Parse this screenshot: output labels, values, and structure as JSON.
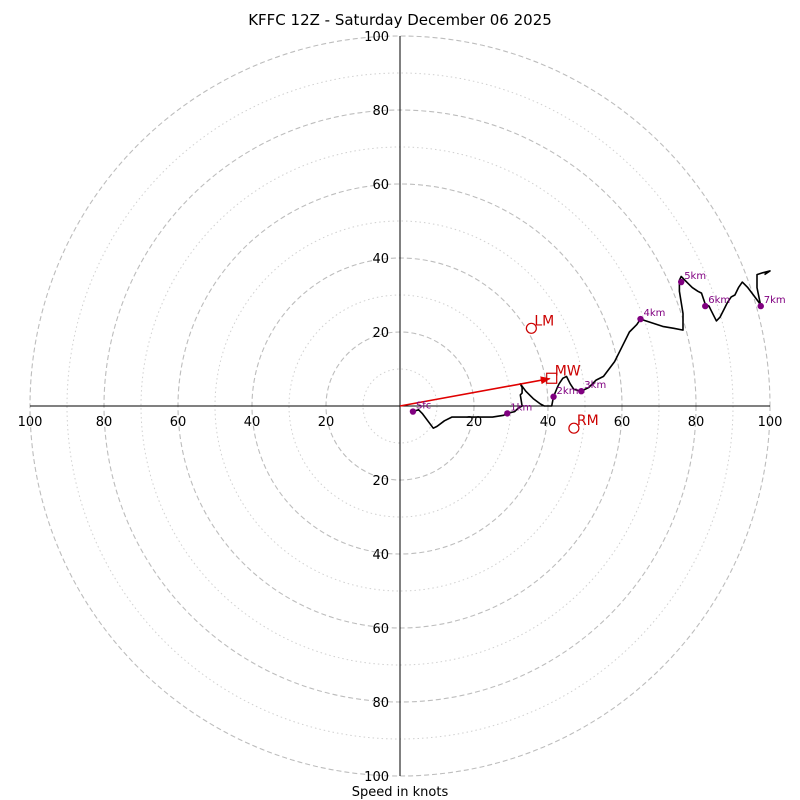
{
  "chart_data": {
    "type": "hodograph",
    "title": "KFFC 12Z - Saturday December 06 2025",
    "xlabel": "Speed in knots",
    "ring_interval": 20,
    "minor_ring_interval": 10,
    "max_speed": 100,
    "tick_labels": {
      "left": [
        "100",
        "80",
        "60",
        "40",
        "20"
      ],
      "right": [
        "20",
        "40",
        "60",
        "80",
        "100"
      ],
      "up": [
        "20",
        "40",
        "60",
        "80",
        "100"
      ],
      "down": [
        "20",
        "40",
        "60",
        "80",
        "100"
      ]
    },
    "trace_uv": [
      [
        3.5,
        -1.5
      ],
      [
        5,
        -1
      ],
      [
        6,
        -2
      ],
      [
        9,
        -6
      ],
      [
        10,
        -5.5
      ],
      [
        12,
        -4
      ],
      [
        14,
        -3
      ],
      [
        18,
        -3
      ],
      [
        22,
        -3
      ],
      [
        25,
        -3
      ],
      [
        28,
        -2.5
      ],
      [
        29,
        -2
      ],
      [
        31,
        -1.5
      ],
      [
        32,
        -0.5
      ],
      [
        33,
        0
      ],
      [
        32.5,
        3
      ],
      [
        33,
        3.5
      ],
      [
        33,
        5
      ],
      [
        32.5,
        6
      ],
      [
        34,
        4
      ],
      [
        36,
        2
      ],
      [
        38,
        0.5
      ],
      [
        39,
        0
      ],
      [
        40,
        0
      ],
      [
        41,
        0
      ],
      [
        41.5,
        2.5
      ],
      [
        42.5,
        5
      ],
      [
        43,
        6
      ],
      [
        44,
        7.5
      ],
      [
        45,
        8
      ],
      [
        46,
        6
      ],
      [
        47,
        4.5
      ],
      [
        49,
        4
      ],
      [
        51,
        5
      ],
      [
        53,
        7
      ],
      [
        55,
        8
      ],
      [
        58,
        12
      ],
      [
        60,
        16
      ],
      [
        62,
        20
      ],
      [
        64,
        22
      ],
      [
        65,
        23.5
      ],
      [
        68,
        22.5
      ],
      [
        71,
        21.5
      ],
      [
        74,
        21
      ],
      [
        76.5,
        20.5
      ],
      [
        76.5,
        22
      ],
      [
        76.5,
        25
      ],
      [
        76,
        28
      ],
      [
        75.5,
        31
      ],
      [
        75.5,
        34
      ],
      [
        76,
        35
      ],
      [
        78,
        33
      ],
      [
        79,
        32
      ],
      [
        80.5,
        31
      ],
      [
        81.5,
        30.5
      ],
      [
        82,
        29
      ],
      [
        82.5,
        27.5
      ],
      [
        83.5,
        27
      ],
      [
        84,
        26
      ],
      [
        85,
        24
      ],
      [
        85.5,
        23
      ],
      [
        86.5,
        24
      ],
      [
        87.5,
        26
      ],
      [
        88.5,
        28
      ],
      [
        89.5,
        29.5
      ],
      [
        90.5,
        30
      ],
      [
        91.5,
        32
      ],
      [
        92.5,
        33.5
      ],
      [
        94,
        32
      ],
      [
        95.5,
        30
      ],
      [
        97,
        28
      ],
      [
        97.5,
        27
      ],
      [
        96.5,
        32
      ],
      [
        96.5,
        35.5
      ],
      [
        98,
        36
      ],
      [
        100,
        36.5
      ],
      [
        98.5,
        35.5
      ]
    ],
    "height_markers": [
      {
        "label": "Sfc",
        "u": 3.5,
        "v": -1.5
      },
      {
        "label": "1km",
        "u": 29,
        "v": -2
      },
      {
        "label": "2km",
        "u": 41.5,
        "v": 2.5
      },
      {
        "label": "3km",
        "u": 49,
        "v": 4
      },
      {
        "label": "4km",
        "u": 65,
        "v": 23.5
      },
      {
        "label": "5km",
        "u": 76,
        "v": 33.5
      },
      {
        "label": "6km",
        "u": 82.5,
        "v": 27
      },
      {
        "label": "7km",
        "u": 97.5,
        "v": 27
      }
    ],
    "storm_motions": [
      {
        "label": "LM",
        "u": 35.5,
        "v": 21,
        "marker": "circle"
      },
      {
        "label": "MW",
        "u": 41,
        "v": 7.5,
        "marker": "square"
      },
      {
        "label": "RM",
        "u": 47,
        "v": -6,
        "marker": "circle"
      }
    ],
    "mean_wind_vector": {
      "u": 41,
      "v": 7.5
    },
    "colors": {
      "trace": "#000000",
      "height_marker": "#800080",
      "storm_motion": "#cc0000",
      "ring": "#bdbdbd",
      "axis": "#000000"
    }
  }
}
